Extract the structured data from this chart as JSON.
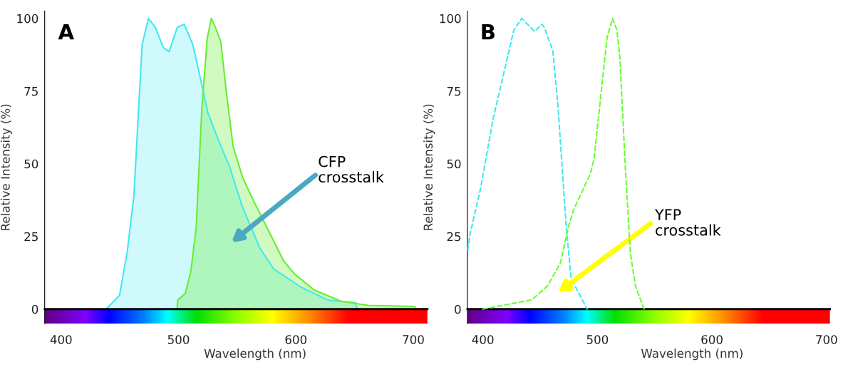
{
  "chart_data": [
    {
      "type": "area",
      "title": "A",
      "xlabel": "Wavelength (nm)",
      "ylabel": "Relative Intensity (%)",
      "xlim": [
        386,
        712
      ],
      "ylim": [
        -5,
        102.5
      ],
      "xticks": [
        400,
        500,
        600,
        700
      ],
      "yticks": [
        0,
        25,
        50,
        75,
        100
      ],
      "grid": false,
      "legend": false,
      "series": [
        {
          "color": "#40e8f0",
          "x": [
            438.4,
            449.8,
            456.3,
            462,
            469,
            474.4,
            480.2,
            487,
            492,
            499,
            504.9,
            511.9,
            515.8,
            525,
            534.4,
            543.7,
            554.2,
            569.3,
            580.9,
            604.2,
            627.4,
            650.7,
            652.3
          ],
          "values": [
            0,
            4.8,
            19.7,
            39,
            91,
            100,
            97,
            90,
            88.6,
            97,
            98,
            91.3,
            84.6,
            67.6,
            57.7,
            48.8,
            35.4,
            21,
            13.9,
            7.6,
            3.1,
            2.2,
            0
          ]
        },
        {
          "color": "#66ee33",
          "x": [
            498.8,
            499.3,
            505.8,
            510.5,
            515.1,
            519.8,
            524.4,
            527.9,
            531.4,
            536,
            540.7,
            546.5,
            554.7,
            564,
            589.5,
            598.8,
            615.1,
            638.4,
            661.6,
            701.2,
            701.6
          ],
          "values": [
            0,
            3.1,
            5.4,
            13,
            28.2,
            68.5,
            93,
            100,
            97,
            92,
            74.8,
            56,
            45.2,
            37.2,
            16.6,
            12.1,
            6.7,
            2.7,
            1.3,
            0.9,
            0
          ]
        }
      ],
      "annotations": [
        "CFP\ncrosstalk"
      ]
    },
    {
      "type": "line",
      "title": "B",
      "xlabel": "Wavelength (nm)",
      "ylabel": "Relative Intensity (%)",
      "xlim": [
        386.5,
        703
      ],
      "ylim": [
        -5,
        102.5
      ],
      "xticks": [
        400,
        500,
        600,
        700
      ],
      "yticks": [
        0,
        25,
        50,
        75,
        100
      ],
      "grid": false,
      "legend": false,
      "line_style": "dashed",
      "marker": "none",
      "series": [
        {
          "color": "#40e8f0",
          "x": [
            386.8,
            388.6,
            397.7,
            409,
            420.3,
            427,
            433.9,
            445.1,
            451.5,
            453.5,
            461,
            465.5,
            469,
            472.5,
            477,
            491
          ],
          "values": [
            20.2,
            25.5,
            41,
            65.6,
            84.7,
            96,
            100,
            95.5,
            98,
            97,
            89,
            70,
            50,
            29.8,
            10.6,
            0
          ]
        },
        {
          "color": "#66ff33",
          "x": [
            400,
            442.8,
            456.4,
            467.7,
            474.5,
            479,
            493.7,
            497,
            502.7,
            508.4,
            513.3,
            517,
            519.6,
            524.2,
            528.7,
            533.2,
            540.7
          ],
          "values": [
            0,
            3.2,
            8,
            15.9,
            28,
            34,
            46.4,
            51.6,
            72.5,
            93.5,
            100,
            96,
            86.5,
            49.9,
            19.4,
            8,
            0
          ]
        }
      ],
      "annotations": [
        "YFP\ncrosstalk"
      ]
    }
  ]
}
